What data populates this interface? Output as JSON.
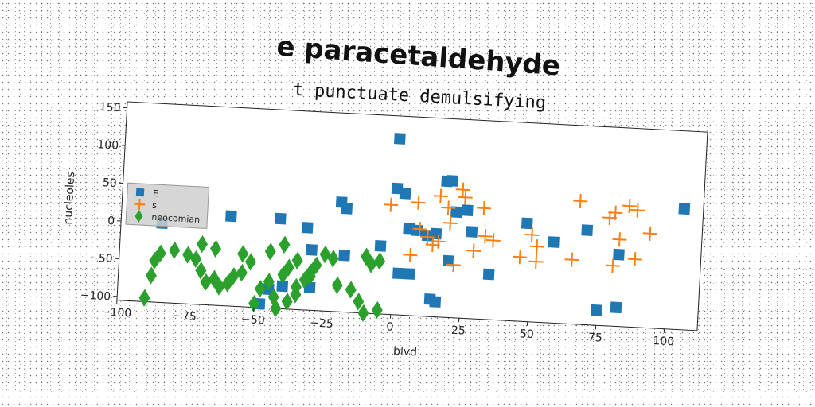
{
  "chart_data": {
    "type": "scatter",
    "title": "e paracetaldehyde",
    "subtitle": "t punctuate demulsifying",
    "xlabel": "blvd",
    "ylabel": "nucleoles",
    "xlim": [
      -100,
      112
    ],
    "ylim": [
      -105,
      158
    ],
    "xticks": [
      -100,
      -75,
      -50,
      -25,
      0,
      25,
      50,
      75,
      100
    ],
    "yticks": [
      -100,
      -50,
      0,
      50,
      100,
      150
    ],
    "xtick_labels": [
      "−100",
      "−75",
      "−50",
      "−25",
      "0",
      "25",
      "50",
      "75",
      "100"
    ],
    "ytick_labels": [
      "−100",
      "−50",
      "0",
      "50",
      "100",
      "150"
    ],
    "grid": false,
    "legend_position": "center-left",
    "series": [
      {
        "name": "E",
        "marker": "square",
        "color": "#1f77b4",
        "points": [
          [
            0,
            128
          ],
          [
            0,
            62
          ],
          [
            3,
            56
          ],
          [
            18,
            75
          ],
          [
            20,
            76
          ],
          [
            26,
            38
          ],
          [
            22,
            35
          ],
          [
            -20,
            40
          ],
          [
            -18,
            32
          ],
          [
            -42,
            14
          ],
          [
            -32,
            4
          ],
          [
            -60,
            14
          ],
          [
            -85,
            0
          ],
          [
            -30,
            -25
          ],
          [
            -18,
            -30
          ],
          [
            -5,
            -15
          ],
          [
            5,
            10
          ],
          [
            8,
            8
          ],
          [
            15,
            5
          ],
          [
            12,
            2
          ],
          [
            28,
            10
          ],
          [
            2,
            -50
          ],
          [
            6,
            -50
          ],
          [
            20,
            -30
          ],
          [
            35,
            -45
          ],
          [
            48,
            25
          ],
          [
            58,
            2
          ],
          [
            70,
            20
          ],
          [
            82,
            -10
          ],
          [
            105,
            55
          ],
          [
            14,
            -82
          ],
          [
            16,
            -85
          ],
          [
            75,
            -85
          ],
          [
            82,
            -80
          ],
          [
            -40,
            -75
          ],
          [
            -45,
            -80
          ],
          [
            -30,
            -75
          ],
          [
            -48,
            -100
          ]
        ]
      },
      {
        "name": "s",
        "marker": "plus",
        "color": "#ff7f0e",
        "points": [
          [
            -2,
            40
          ],
          [
            8,
            45
          ],
          [
            16,
            55
          ],
          [
            25,
            55
          ],
          [
            24,
            65
          ],
          [
            19,
            40
          ],
          [
            32,
            42
          ],
          [
            20,
            20
          ],
          [
            9,
            10
          ],
          [
            12,
            0
          ],
          [
            16,
            -5
          ],
          [
            6,
            -25
          ],
          [
            14,
            -10
          ],
          [
            33,
            5
          ],
          [
            36,
            0
          ],
          [
            29,
            -15
          ],
          [
            46,
            -20
          ],
          [
            52,
            -25
          ],
          [
            50,
            10
          ],
          [
            52,
            -5
          ],
          [
            67,
            58
          ],
          [
            78,
            38
          ],
          [
            80,
            45
          ],
          [
            85,
            55
          ],
          [
            88,
            50
          ],
          [
            93,
            20
          ],
          [
            82,
            10
          ],
          [
            80,
            -25
          ],
          [
            88,
            -15
          ],
          [
            65,
            -20
          ],
          [
            22,
            -35
          ]
        ]
      },
      {
        "name": "neocomian",
        "marker": "diamond",
        "color": "#2ca02c",
        "points": [
          [
            -90,
            -100
          ],
          [
            -88,
            -70
          ],
          [
            -87,
            -50
          ],
          [
            -85,
            -40
          ],
          [
            -80,
            -35
          ],
          [
            -75,
            -40
          ],
          [
            -72,
            -45
          ],
          [
            -70,
            -60
          ],
          [
            -68,
            -75
          ],
          [
            -65,
            -70
          ],
          [
            -63,
            -80
          ],
          [
            -60,
            -75
          ],
          [
            -58,
            -65
          ],
          [
            -55,
            -60
          ],
          [
            -52,
            -45
          ],
          [
            -50,
            -100
          ],
          [
            -48,
            -80
          ],
          [
            -45,
            -70
          ],
          [
            -43,
            -90
          ],
          [
            -40,
            -60
          ],
          [
            -38,
            -50
          ],
          [
            -35,
            -40
          ],
          [
            -32,
            -65
          ],
          [
            -30,
            -55
          ],
          [
            -28,
            -45
          ],
          [
            -25,
            -30
          ],
          [
            -22,
            -35
          ],
          [
            -55,
            -35
          ],
          [
            -42,
            -105
          ],
          [
            -38,
            -95
          ],
          [
            -35,
            -85
          ],
          [
            -20,
            -70
          ],
          [
            -15,
            -75
          ],
          [
            -12,
            -90
          ],
          [
            -10,
            -30
          ],
          [
            -8,
            -40
          ],
          [
            -5,
            -35
          ],
          [
            -65,
            -30
          ],
          [
            -70,
            -25
          ],
          [
            -45,
            -30
          ],
          [
            -40,
            -20
          ],
          [
            -35,
            -75
          ],
          [
            -30,
            -60
          ],
          [
            -10,
            -105
          ],
          [
            -5,
            -100
          ]
        ]
      }
    ]
  }
}
